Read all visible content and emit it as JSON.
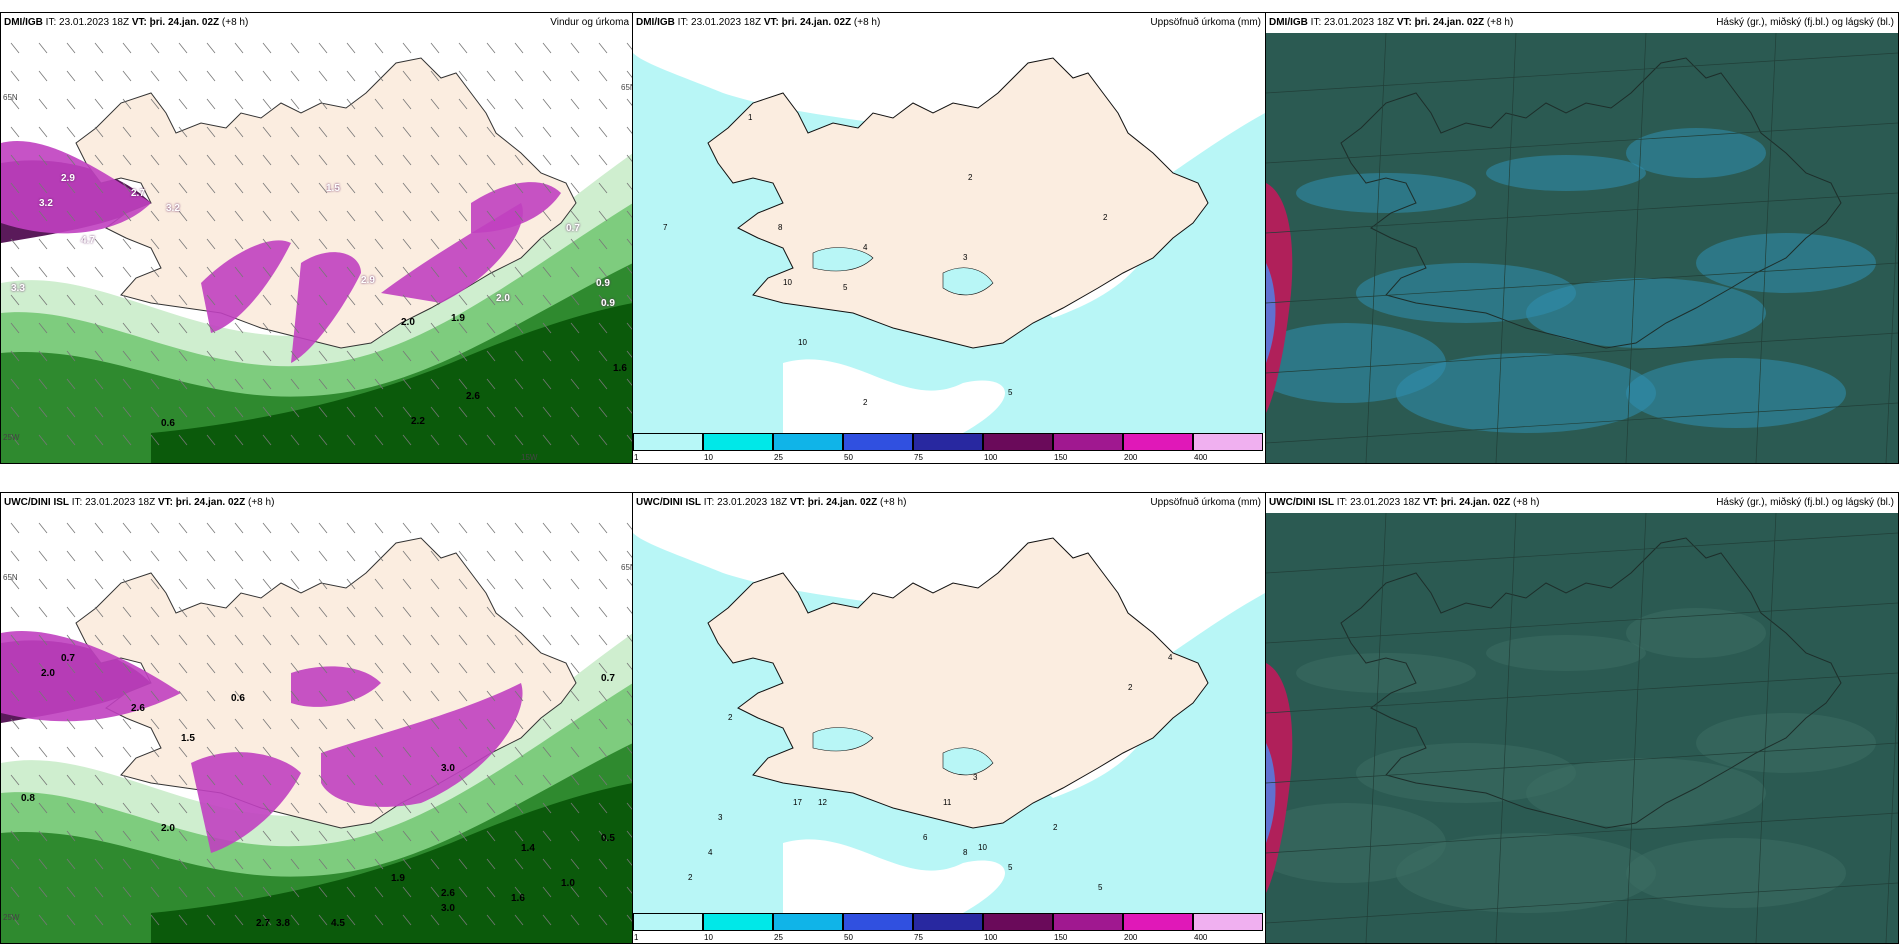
{
  "panels": [
    {
      "id": "dmi-wind",
      "model": "DMI/IGB",
      "it": "IT: 23.01.2023 18Z",
      "vt": "VT: þri. 24.jan. 02Z",
      "lead": "(+8 h)",
      "title": "Vindur og úrkoma",
      "labels": [
        "3.2",
        "2.9",
        "2.7",
        "3.2",
        "4.7",
        "3.3",
        "1.5",
        "2.9",
        "2.0",
        "1.9",
        "2.0",
        "0.9",
        "0.9",
        "2.6",
        "2.2",
        "0.6",
        "1.6",
        "0.7"
      ],
      "coords": {
        "lat1": "65N",
        "lat2": "65N",
        "lon1": "25W",
        "lon2": "15W"
      }
    },
    {
      "id": "dmi-precip",
      "model": "DMI/IGB",
      "it": "IT: 23.01.2023 18Z",
      "vt": "VT: þri. 24.jan. 02Z",
      "lead": "(+8 h)",
      "title": "Uppsöfnuð úrkoma (mm)",
      "labels": [
        "1",
        "2",
        "7",
        "8",
        "10",
        "2",
        "4",
        "3",
        "5",
        "10",
        "2",
        "5"
      ]
    },
    {
      "id": "dmi-cloud",
      "model": "DMI/IGB",
      "it": "IT: 23.01.2023 18Z",
      "vt": "VT: þri. 24.jan. 02Z",
      "lead": "(+8 h)",
      "title": "Háský (gr.), miðský (fj.bl.) og lágský (bl.)"
    },
    {
      "id": "uwc-wind",
      "model": "UWC/DINI ISL",
      "it": "IT: 23.01.2023 18Z",
      "vt": "VT: þri. 24.jan. 02Z",
      "lead": "(+8 h)",
      "title": "",
      "labels": [
        "2.0",
        "0.7",
        "2.6",
        "1.5",
        "0.6",
        "0.8",
        "3.0",
        "2.0",
        "2.7",
        "3.8",
        "4.5",
        "1.9",
        "1.6",
        "1.0",
        "0.5",
        "0.7",
        "1.4",
        "3.0",
        "2.6"
      ],
      "coords": {
        "lat1": "65N",
        "lat2": "65N",
        "lon1": "25W"
      }
    },
    {
      "id": "uwc-precip",
      "model": "UWC/DINI ISL",
      "it": "IT: 23.01.2023 18Z",
      "vt": "VT: þri. 24.jan. 02Z",
      "lead": "(+8 h)",
      "title": "Uppsöfnuð úrkoma (mm)",
      "labels": [
        "2",
        "3",
        "4",
        "2",
        "17",
        "12",
        "11",
        "6",
        "10",
        "8",
        "5",
        "3",
        "2",
        "5",
        "2",
        "4"
      ]
    },
    {
      "id": "uwc-cloud",
      "model": "UWC/DINI ISL",
      "it": "IT: 23.01.2023 18Z",
      "vt": "VT: þri. 24.jan. 02Z",
      "lead": "(+8 h)",
      "title": "Háský (gr.), miðský (fj.bl.) og lágský (bl.)"
    }
  ],
  "legend": {
    "ticks": [
      "1",
      "10",
      "25",
      "50",
      "75",
      "100",
      "150",
      "200",
      "400"
    ],
    "colors": [
      "#b7f7f7",
      "#00e8e8",
      "#10b4e8",
      "#3050e0",
      "#2828a0",
      "#6a0a5a",
      "#a01890",
      "#e018b8",
      "#f0b0f0"
    ]
  },
  "colors": {
    "land": "#fbede0",
    "sea": "#ffffff",
    "precip_light": "#b8f6f6",
    "green1": "#cfeecf",
    "green2": "#7ecc7e",
    "green3": "#2f8a2f",
    "green4": "#0b5a0b",
    "purple": "#c040c0",
    "cloud_bg": "#2b5a52",
    "cloud_blue": "#2f8fb0",
    "cloud_red": "#b0205a"
  }
}
